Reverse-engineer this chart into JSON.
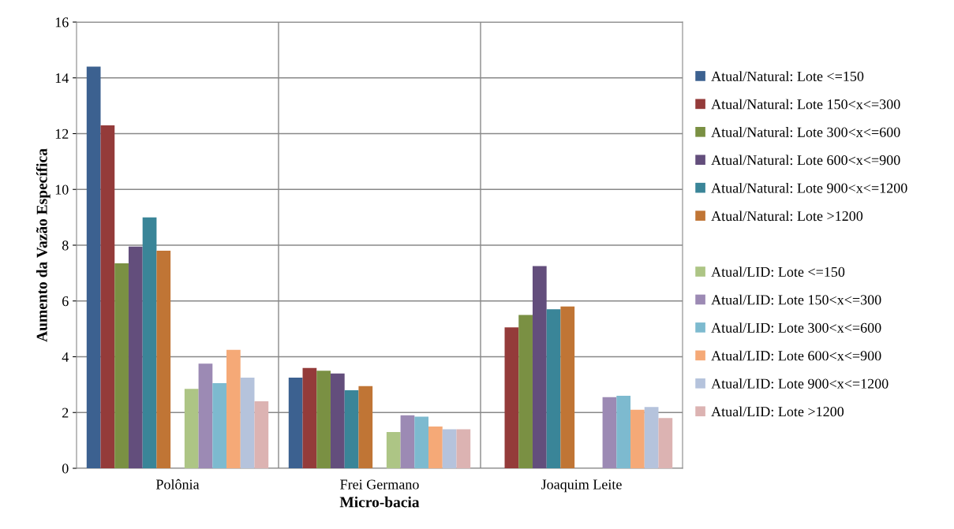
{
  "chart_data": {
    "type": "bar",
    "xlabel": "Micro-bacia",
    "ylabel": "Aumento da Vazão Específica",
    "categories": [
      "Polônia",
      "Frei Germano",
      "Joaquim Leite"
    ],
    "ylim": [
      0,
      16
    ],
    "yticks": [
      0,
      2,
      4,
      6,
      8,
      10,
      12,
      14,
      16
    ],
    "grid": true,
    "legend": "right",
    "series": [
      {
        "name": "Atual/Natural: Lote <=150",
        "color": "#3c6190",
        "values": [
          14.4,
          3.25,
          null
        ]
      },
      {
        "name": "Atual/Natural: Lote 150<x<=300",
        "color": "#943b3a",
        "values": [
          12.3,
          3.6,
          5.05
        ]
      },
      {
        "name": "Atual/Natural: Lote 300<x<=600",
        "color": "#7a9043",
        "values": [
          7.35,
          3.5,
          5.5
        ]
      },
      {
        "name": "Atual/Natural: Lote 600<x<=900",
        "color": "#634e7c",
        "values": [
          7.95,
          3.4,
          7.25
        ]
      },
      {
        "name": "Atual/Natural: Lote 900<x<=1200",
        "color": "#3a8598",
        "values": [
          9.0,
          2.8,
          5.7
        ]
      },
      {
        "name": "Atual/Natural: Lote >1200",
        "color": "#c07535",
        "values": [
          7.8,
          2.95,
          5.8
        ]
      },
      {
        "values": [
          null,
          null,
          null
        ]
      },
      {
        "name": "Atual/LID: Lote <=150",
        "color": "#adc585",
        "values": [
          2.85,
          1.3,
          null
        ]
      },
      {
        "name": "Atual/LID: Lote 150<x<=300",
        "color": "#9c8ab4",
        "values": [
          3.75,
          1.9,
          2.55
        ]
      },
      {
        "name": "Atual/LID: Lote 300<x<=600",
        "color": "#7dbacf",
        "values": [
          3.05,
          1.85,
          2.6
        ]
      },
      {
        "name": "Atual/LID: Lote 600<x<=900",
        "color": "#f5a977",
        "values": [
          4.25,
          1.5,
          2.1
        ]
      },
      {
        "name": "Atual/LID: Lote 900<x<=1200",
        "color": "#b5c3dc",
        "values": [
          3.25,
          1.4,
          2.2
        ]
      },
      {
        "name": "Atual/LID: Lote >1200",
        "color": "#dcb3b2",
        "values": [
          2.4,
          1.4,
          1.8
        ]
      }
    ]
  }
}
